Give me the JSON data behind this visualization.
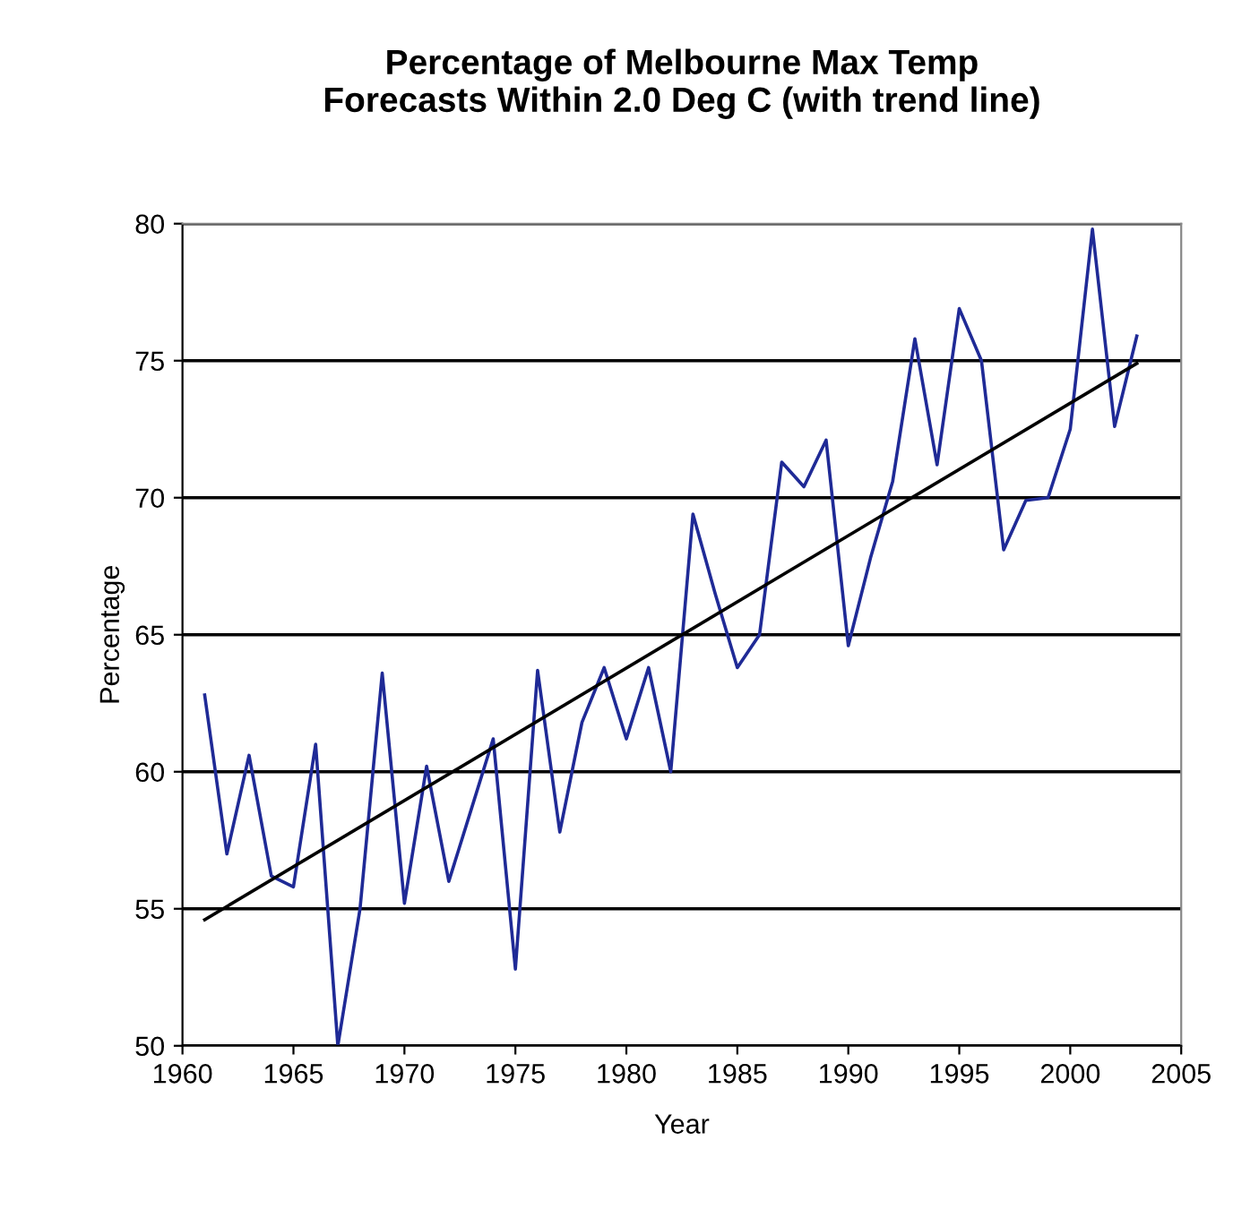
{
  "chart_data": {
    "type": "line",
    "title": "Percentage of Melbourne Max Temp\nForecasts Within 2.0 Deg C (with trend line)",
    "xlabel": "Year",
    "ylabel": "Percentage",
    "series": [
      {
        "color": "#1f2a96",
        "x": [
          1961,
          1962,
          1963,
          1964,
          1965,
          1966,
          1967,
          1968,
          1969,
          1970,
          1971,
          1972,
          1973,
          1974,
          1975,
          1976,
          1977,
          1978,
          1979,
          1980,
          1981,
          1982,
          1983,
          1984,
          1985,
          1986,
          1987,
          1988,
          1989,
          1990,
          1991,
          1992,
          1993,
          1994,
          1995,
          1996,
          1997,
          1998,
          1999,
          2000,
          2001,
          2002,
          2003
        ],
        "values": [
          62.8,
          57.0,
          60.6,
          56.2,
          55.8,
          61.0,
          50.0,
          55.0,
          63.6,
          55.2,
          60.2,
          56.0,
          58.6,
          61.2,
          52.8,
          63.7,
          57.8,
          61.8,
          63.8,
          61.2,
          63.8,
          60.0,
          69.4,
          66.5,
          63.8,
          65.0,
          71.3,
          70.4,
          72.1,
          64.6,
          67.8,
          70.6,
          75.8,
          71.2,
          76.9,
          75.0,
          68.1,
          69.9,
          70.0,
          72.5,
          79.8,
          72.6,
          75.9
        ]
      },
      {
        "color": "#000000",
        "x": [
          1961,
          2003
        ],
        "values": [
          54.6,
          74.9
        ]
      }
    ],
    "xlim": [
      1960,
      2005
    ],
    "xticks": [
      1960,
      1965,
      1970,
      1975,
      1980,
      1985,
      1990,
      1995,
      2000,
      2005
    ],
    "ylim": [
      50,
      80
    ],
    "yticks": [
      50,
      55,
      60,
      65,
      70,
      75,
      80
    ],
    "grid": "y",
    "marker": "none",
    "line_style": "solid"
  }
}
